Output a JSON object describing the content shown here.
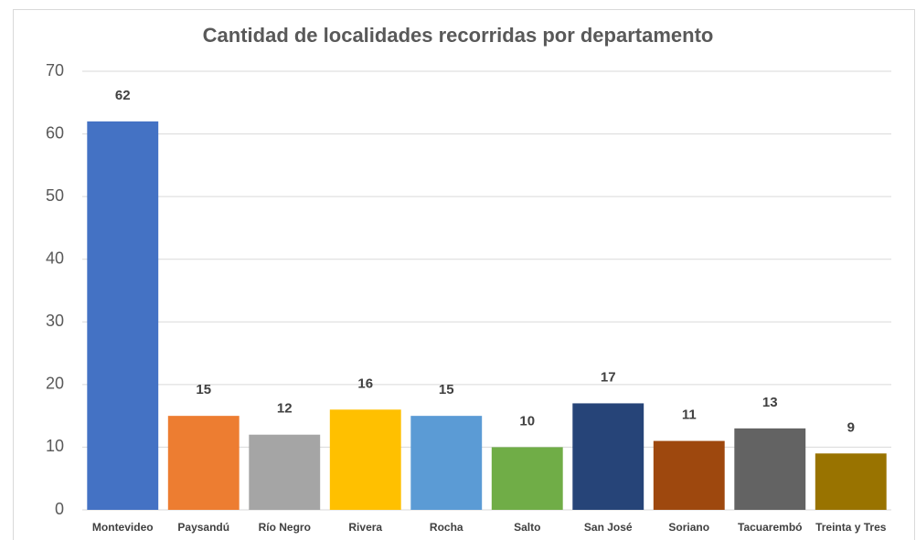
{
  "chart_data": {
    "type": "bar",
    "title": "Cantidad de localidades recorridas por departamento",
    "categories": [
      "Montevideo",
      "Paysandú",
      "Río Negro",
      "Rivera",
      "Rocha",
      "Salto",
      "San José",
      "Soriano",
      "Tacuarembó",
      "Treinta y Tres"
    ],
    "values": [
      62,
      15,
      12,
      16,
      15,
      10,
      17,
      11,
      13,
      9
    ],
    "colors": [
      "#4472c4",
      "#ed7d31",
      "#a5a5a5",
      "#ffc000",
      "#5b9bd5",
      "#70ad47",
      "#264478",
      "#9e480e",
      "#636363",
      "#997300"
    ],
    "ylim": [
      0,
      70
    ],
    "yticks": [
      0,
      10,
      20,
      30,
      40,
      50,
      60,
      70
    ],
    "grid": true
  }
}
